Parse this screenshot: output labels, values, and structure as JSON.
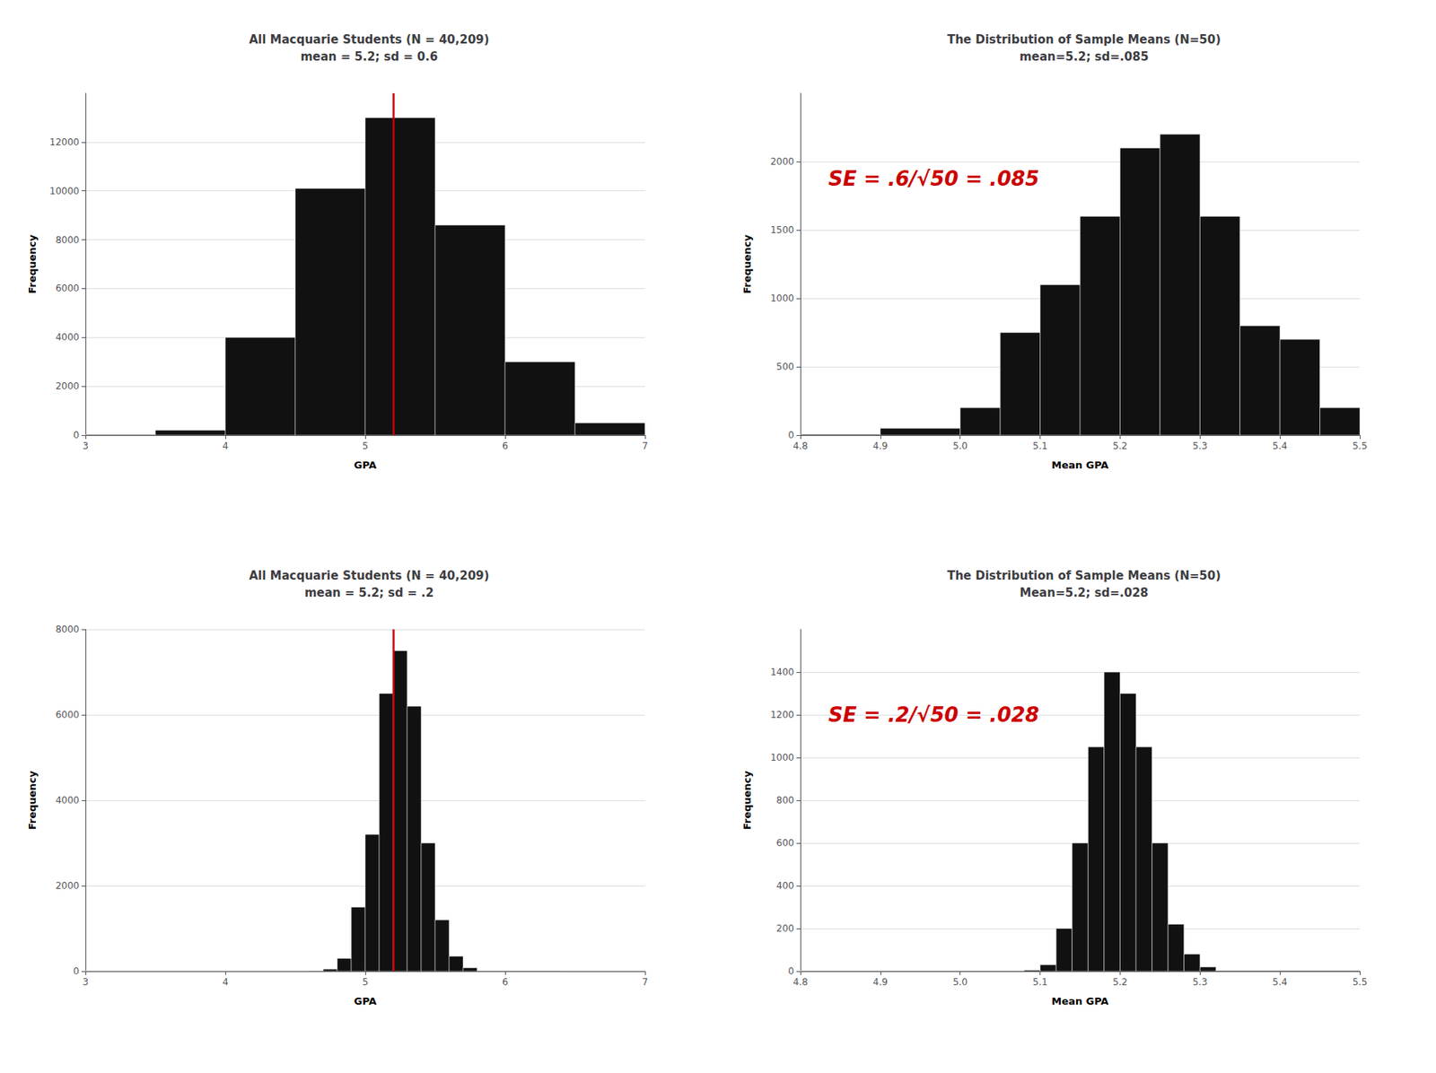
{
  "chart_data": [
    {
      "type": "histogram",
      "title": "All Macquarie Students (N = 40,209)\nmean = 5.2; sd = 0.6",
      "xlabel": "GPA",
      "ylabel": "Frequency",
      "bins": [
        3.0,
        3.5,
        4.0,
        4.5,
        5.0,
        5.5,
        6.0,
        6.5,
        7.0
      ],
      "values": [
        20,
        200,
        4000,
        10100,
        13000,
        8600,
        3000,
        500
      ],
      "xlim": [
        3,
        7
      ],
      "ylim": [
        0,
        14000
      ],
      "xticks": [
        3,
        4,
        5,
        6,
        7
      ],
      "yticks": [
        0,
        2000,
        4000,
        6000,
        8000,
        10000,
        12000
      ],
      "grid": true,
      "color": "#111111",
      "mean_line": {
        "value": 5.2,
        "color": "#cc0000"
      }
    },
    {
      "type": "histogram",
      "title": "The Distribution of Sample Means (N=50)\nmean=5.2; sd=.085",
      "xlabel": "Mean GPA",
      "ylabel": "Frequency",
      "bins": [
        4.8,
        4.9,
        5.0,
        5.05,
        5.1,
        5.15,
        5.2,
        5.25,
        5.3,
        5.35,
        5.4,
        5.45,
        5.5
      ],
      "values": [
        5,
        50,
        200,
        750,
        1100,
        1600,
        2100,
        2200,
        1600,
        800,
        700,
        200
      ],
      "xlim": [
        4.8,
        5.5
      ],
      "ylim": [
        0,
        2500
      ],
      "xticks": [
        4.8,
        4.9,
        {
          "value": 5,
          "label": "5.0"
        },
        5.1,
        5.2,
        5.3,
        5.4,
        5.5
      ],
      "yticks": [
        0,
        500,
        1000,
        1500,
        2000
      ],
      "grid": true,
      "color": "#111111",
      "annotation": {
        "text": "SE = .6/√50 = .085",
        "color": "#cc0000"
      }
    },
    {
      "type": "histogram",
      "title": "All Macquarie Students (N = 40,209)\nmean = 5.2; sd = .2",
      "xlabel": "GPA",
      "ylabel": "Frequency",
      "bins": [
        3.0,
        4.6,
        4.7,
        4.8,
        4.9,
        5.0,
        5.1,
        5.2,
        5.3,
        5.4,
        5.5,
        5.6,
        5.7,
        5.8,
        6.4,
        7.0
      ],
      "values": [
        5,
        10,
        50,
        300,
        1500,
        3200,
        6500,
        7500,
        6200,
        3000,
        1200,
        350,
        80,
        10,
        3
      ],
      "xlim": [
        3,
        7
      ],
      "ylim": [
        0,
        8000
      ],
      "xticks": [
        3,
        4,
        5,
        6,
        7
      ],
      "yticks": [
        0,
        2000,
        4000,
        6000,
        8000
      ],
      "grid": true,
      "color": "#111111",
      "mean_line": {
        "value": 5.2,
        "color": "#cc0000"
      }
    },
    {
      "type": "histogram",
      "title": "The Distribution of Sample Means (N=50)\nMean=5.2; sd=.028",
      "xlabel": "Mean GPA",
      "ylabel": "Frequency",
      "bins": [
        4.8,
        5.08,
        5.1,
        5.12,
        5.14,
        5.16,
        5.18,
        5.2,
        5.22,
        5.24,
        5.26,
        5.28,
        5.3,
        5.32,
        5.5
      ],
      "values": [
        2,
        5,
        30,
        200,
        600,
        1050,
        1400,
        1300,
        1050,
        600,
        220,
        80,
        20,
        3
      ],
      "xlim": [
        4.8,
        5.5
      ],
      "ylim": [
        0,
        1600
      ],
      "xticks": [
        4.8,
        4.9,
        {
          "value": 5,
          "label": "5.0"
        },
        5.1,
        5.2,
        5.3,
        5.4,
        5.5
      ],
      "yticks": [
        0,
        200,
        400,
        600,
        800,
        1000,
        1200,
        1400
      ],
      "grid": true,
      "color": "#111111",
      "annotation": {
        "text": "SE = .2/√50 = .028",
        "color": "#cc0000"
      }
    }
  ]
}
